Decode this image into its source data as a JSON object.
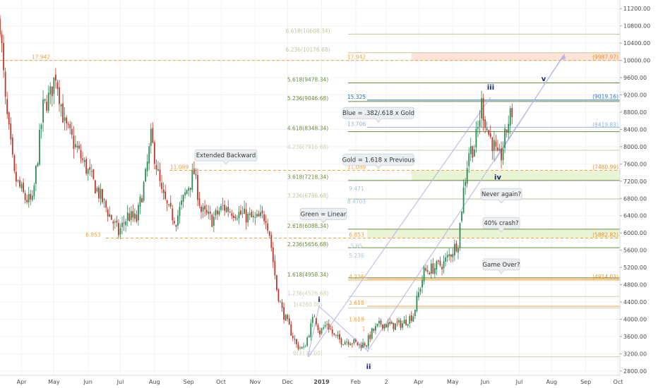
{
  "chart_data": {
    "type": "candlestick",
    "y_axis": {
      "side": "right",
      "ylim": [
        2700,
        11400
      ],
      "ticks": [
        2800,
        3200,
        3600,
        4000,
        4400,
        4800,
        5200,
        5600,
        6000,
        6400,
        6800,
        7200,
        7600,
        8000,
        8400,
        8800,
        9200,
        9600,
        10000,
        10400,
        10800,
        11200
      ],
      "tick_labels": [
        "2800.00",
        "3200.00",
        "3600.00",
        "4000.00",
        "4400.00",
        "4800.00",
        "5200.00",
        "5600.00",
        "6000.00",
        "6400.00",
        "6800.00",
        "7200.00",
        "7600.00",
        "8000.00",
        "8400.00",
        "8800.00",
        "9200.00",
        "9600.00",
        "10000.00",
        "10400.00",
        "10800.00",
        "11200.00"
      ]
    },
    "x_axis": {
      "labels": [
        {
          "t": 12,
          "label": "Apr"
        },
        {
          "t": 30,
          "label": "May"
        },
        {
          "t": 49,
          "label": "Jun"
        },
        {
          "t": 67,
          "label": "Jul"
        },
        {
          "t": 86,
          "label": "Aug"
        },
        {
          "t": 105,
          "label": "Sep"
        },
        {
          "t": 123,
          "label": "Oct"
        },
        {
          "t": 142,
          "label": "Nov"
        },
        {
          "t": 160,
          "label": "Dec"
        },
        {
          "t": 179,
          "label": "2019",
          "bold": true
        },
        {
          "t": 198,
          "label": "Feb"
        },
        {
          "t": 215,
          "label": "2"
        },
        {
          "t": 233,
          "label": "Apr"
        },
        {
          "t": 252,
          "label": "May"
        },
        {
          "t": 270,
          "label": "Jun"
        },
        {
          "t": 289,
          "label": "Jul"
        },
        {
          "t": 307,
          "label": "Aug"
        },
        {
          "t": 326,
          "label": "Sep"
        },
        {
          "t": 344,
          "label": "Oct"
        }
      ],
      "t_min": 0,
      "t_max": 345
    },
    "anchors": [
      [
        0,
        10900
      ],
      [
        3,
        9000
      ],
      [
        8,
        7300
      ],
      [
        14,
        6800
      ],
      [
        18,
        6700
      ],
      [
        24,
        8900
      ],
      [
        28,
        9200
      ],
      [
        31,
        9700
      ],
      [
        36,
        8500
      ],
      [
        42,
        8000
      ],
      [
        48,
        7500
      ],
      [
        54,
        7000
      ],
      [
        60,
        6500
      ],
      [
        66,
        6000
      ],
      [
        71,
        6400
      ],
      [
        76,
        6300
      ],
      [
        81,
        7300
      ],
      [
        84,
        8200
      ],
      [
        86,
        7800
      ],
      [
        90,
        6900
      ],
      [
        94,
        6500
      ],
      [
        98,
        6300
      ],
      [
        104,
        7000
      ],
      [
        108,
        7400
      ],
      [
        112,
        6500
      ],
      [
        118,
        6300
      ],
      [
        124,
        6600
      ],
      [
        130,
        6500
      ],
      [
        136,
        6400
      ],
      [
        142,
        6300
      ],
      [
        148,
        6400
      ],
      [
        150,
        6000
      ],
      [
        154,
        4700
      ],
      [
        157,
        4200
      ],
      [
        161,
        3800
      ],
      [
        165,
        3400
      ],
      [
        169,
        3300
      ],
      [
        172,
        3700
      ],
      [
        175,
        4100
      ],
      [
        178,
        3700
      ],
      [
        182,
        3900
      ],
      [
        186,
        3600
      ],
      [
        190,
        3500
      ],
      [
        195,
        3500
      ],
      [
        200,
        3400
      ],
      [
        204,
        3450
      ],
      [
        207,
        3700
      ],
      [
        212,
        3900
      ],
      [
        218,
        3850
      ],
      [
        224,
        3900
      ],
      [
        230,
        4100
      ],
      [
        233,
        4600
      ],
      [
        236,
        5100
      ],
      [
        242,
        5200
      ],
      [
        247,
        5300
      ],
      [
        252,
        5600
      ],
      [
        255,
        5800
      ],
      [
        258,
        7000
      ],
      [
        261,
        7900
      ],
      [
        264,
        8000
      ],
      [
        266,
        8400
      ],
      [
        268,
        9000
      ],
      [
        270,
        8600
      ],
      [
        272,
        8300
      ],
      [
        275,
        8000
      ],
      [
        277,
        7700
      ],
      [
        279,
        7800
      ],
      [
        281,
        8200
      ],
      [
        283,
        8600
      ],
      [
        285,
        8800
      ]
    ],
    "levels": [
      {
        "label": "6.618(10608.34)",
        "value": 10608,
        "color": "#bcc99a",
        "x0": 493,
        "x1": 878,
        "style": "solid",
        "label_x": 436
      },
      {
        "label": "6.236(10176.68)",
        "value": 10177,
        "color": "#bcc99a",
        "x0": 493,
        "x1": 878,
        "style": "solid",
        "label_x": 436
      },
      {
        "label": "5.618(9478.34)",
        "value": 9478,
        "color": "#6a8d3a",
        "x0": 493,
        "x1": 878,
        "style": "solid",
        "label_x": 436
      },
      {
        "label": "5.236(9046.68)",
        "value": 9047,
        "color": "#6a8d3a",
        "x0": 493,
        "x1": 878,
        "style": "solid",
        "label_x": 436
      },
      {
        "label": "4.618(8348.34)",
        "value": 8348,
        "color": "#6a8d3a",
        "x0": 493,
        "x1": 878,
        "style": "solid",
        "label_x": 436
      },
      {
        "label": "4.236(7916.68)",
        "value": 7917,
        "color": "#c7d1b0",
        "x0": 493,
        "x1": 878,
        "style": "solid",
        "label_x": 436
      },
      {
        "label": "3.618(7218.34)",
        "value": 7218,
        "color": "#6a8d3a",
        "x0": 493,
        "x1": 878,
        "style": "solid",
        "label_x": 436
      },
      {
        "label": "3.236(6786.68)",
        "value": 6787,
        "color": "#bcc99a",
        "x0": 493,
        "x1": 878,
        "style": "solid",
        "label_x": 436
      },
      {
        "label": "2.618(6088.34)",
        "value": 6088,
        "color": "#6a8d3a",
        "x0": 493,
        "x1": 878,
        "style": "solid",
        "label_x": 436
      },
      {
        "label": "2.236(5656.68)",
        "value": 5657,
        "color": "#6a8d3a",
        "x0": 493,
        "x1": 878,
        "style": "solid",
        "label_x": 436
      },
      {
        "label": "1.618(4958.34)",
        "value": 4958,
        "color": "#6a8d3a",
        "x0": 493,
        "x1": 878,
        "style": "solid",
        "label_x": 436
      },
      {
        "label": "1.236(4526.68)",
        "value": 4527,
        "color": "#c7d1b0",
        "x0": 493,
        "x1": 878,
        "style": "solid",
        "label_x": 436
      },
      {
        "label": "1(4260.00)",
        "value": 4260,
        "color": "#c7d1b0",
        "x0": 493,
        "x1": 878,
        "style": "solid",
        "label_x": 436
      },
      {
        "label": "0(3130.00)",
        "value": 3130,
        "color": "#c7d1b0",
        "x0": 493,
        "x1": 878,
        "style": "solid",
        "label_x": 436
      },
      {
        "label": "17.942",
        "value": 10000,
        "color": "#f5a03c",
        "x0": 0,
        "x1": 878,
        "style": "dashed",
        "label_x": 505
      },
      {
        "label": "11.089",
        "value": 7450,
        "color": "#f5a03c",
        "x0": 240,
        "x1": 878,
        "style": "dashed",
        "label_x": 505
      },
      {
        "label": "6.853",
        "value": 5880,
        "color": "#f5a03c",
        "x0": 150,
        "x1": 878,
        "style": "dashed",
        "label_x": 505
      },
      {
        "label": "4.236",
        "value": 4910,
        "color": "#f5a03c",
        "x0": 493,
        "x1": 878,
        "style": "solid",
        "label_x": 505
      },
      {
        "label": "2.618",
        "value": 4300,
        "color": "#f5a03c",
        "x0": 520,
        "x1": 878,
        "style": "solid",
        "label_x": 505
      },
      {
        "label": "1.618",
        "value": 3920,
        "color": "#f5a03c",
        "x0": 520,
        "x1": 878,
        "style": "none",
        "label_x": 505
      },
      {
        "label": "1",
        "value": 3700,
        "color": "#f5a03c",
        "x0": 520,
        "x1": 878,
        "style": "none",
        "label_x": 515
      },
      {
        "label": "15.325",
        "value": 9080,
        "color": "#1e6fb8",
        "x0": 520,
        "x1": 878,
        "style": "solid",
        "label_x": 505
      },
      {
        "label": "13.706",
        "value": 8450,
        "color": "#8fb3d9",
        "x0": 520,
        "x1": 878,
        "style": "solid",
        "label_x": 505
      },
      {
        "label": "9.471",
        "value": 6950,
        "color": "#a9c3e0",
        "x0": 520,
        "x1": 878,
        "style": "none",
        "label_x": 505
      },
      {
        "label": "8.4703",
        "value": 6650,
        "color": "#a9c3e0",
        "x0": 520,
        "x1": 878,
        "style": "none",
        "label_x": 505
      },
      {
        "label": "5.85",
        "value": 5620,
        "color": "#a9c3e0",
        "x0": 520,
        "x1": 878,
        "style": "none",
        "label_x": 505
      },
      {
        "label": "5.236",
        "value": 5400,
        "color": "#a9c3e0",
        "x0": 520,
        "x1": 878,
        "style": "none",
        "label_x": 505
      }
    ],
    "left_labels": [
      {
        "label": "17.942",
        "value": 10000,
        "color": "#f5a03c",
        "x": 58
      },
      {
        "label": "11.089",
        "value": 7450,
        "color": "#f5a03c",
        "x": 254
      },
      {
        "label": "6.853",
        "value": 5880,
        "color": "#f5a03c",
        "x": 132
      }
    ],
    "right_labels": [
      {
        "label": "(9987.97)",
        "value": 10000,
        "color": "#e8912a"
      },
      {
        "label": "(9019.16)",
        "value": 9090,
        "color": "#1e6fb8"
      },
      {
        "label": "(8419.83)",
        "value": 8430,
        "color": "#8fb3d9"
      },
      {
        "label": "(7480.99)",
        "value": 7450,
        "color": "#e8912a"
      },
      {
        "label": "(5882.82)",
        "value": 5880,
        "color": "#e8912a"
      },
      {
        "label": "(4914.03)",
        "value": 4910,
        "color": "#e8912a"
      }
    ],
    "zones": [
      {
        "y0": 9990,
        "y1": 10180,
        "x0": 583,
        "x1": 878,
        "color": "#fde3d8"
      },
      {
        "y0": 7218,
        "y1": 7450,
        "x0": 583,
        "x1": 878,
        "color": "#e9f3d6"
      },
      {
        "y0": 5880,
        "y1": 6088,
        "x0": 520,
        "x1": 878,
        "color": "#e9f3d6"
      },
      {
        "y0": 4910,
        "y1": 4960,
        "x0": 520,
        "x1": 878,
        "color": "#fbe0c0"
      }
    ],
    "callouts": [
      {
        "text": "Extended Backward",
        "cx": 320,
        "value": 7800,
        "w": 88
      },
      {
        "text": "Blue = .382/.618 x Gold",
        "cx": 536,
        "value": 8780,
        "w": 100
      },
      {
        "text": "Gold = 1.618 x Previous",
        "cx": 536,
        "value": 7700,
        "w": 100
      },
      {
        "text": "Green = Linear",
        "cx": 458,
        "value": 6440,
        "w": 66
      },
      {
        "text": "Never again?",
        "cx": 710,
        "value": 6900,
        "w": 58
      },
      {
        "text": "40% crash?",
        "cx": 710,
        "value": 6230,
        "w": 52
      },
      {
        "text": "Game Over?",
        "cx": 710,
        "value": 5270,
        "w": 52
      }
    ],
    "wave_labels": [
      {
        "label": "i",
        "x": 452,
        "value": 4400
      },
      {
        "label": "ii",
        "x": 522,
        "value": 2850
      },
      {
        "label": "iii",
        "x": 695,
        "value": 9320
      },
      {
        "label": "iv",
        "x": 705,
        "value": 7240
      },
      {
        "label": "v",
        "x": 770,
        "value": 9520
      }
    ]
  }
}
